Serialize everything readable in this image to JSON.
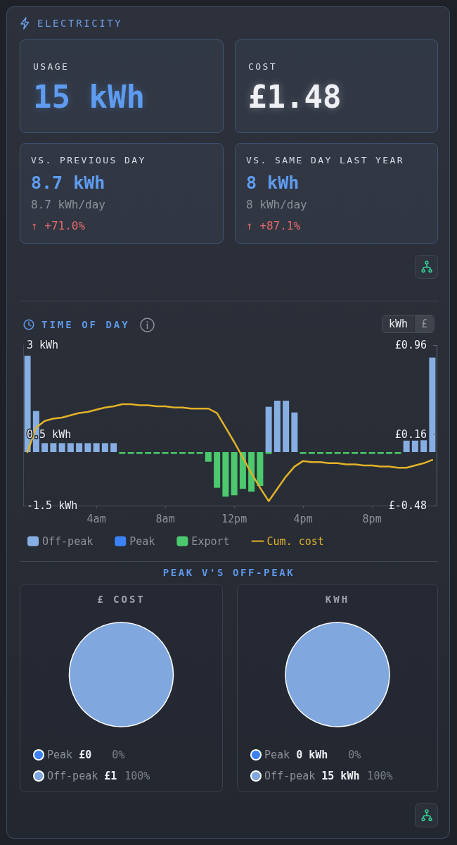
{
  "chart_data": [
    {
      "type": "other",
      "title": "ELECTRICITY"
    },
    {
      "type": "other",
      "title": "USAGE",
      "annotations": [
        "15 kWh"
      ]
    },
    {
      "type": "other",
      "title": "COST",
      "annotations": [
        "£1.48"
      ]
    },
    {
      "type": "other",
      "title": "VS. PREVIOUS DAY",
      "annotations": [
        "8.7 kWh",
        "8.7 kWh/day",
        "↑ +71.0%"
      ]
    },
    {
      "type": "other",
      "title": "VS. SAME DAY LAST YEAR",
      "annotations": [
        "8 kWh",
        "8 kWh/day",
        "↑ +87.1%"
      ]
    },
    {
      "type": "bar",
      "title": "TIME OF DAY",
      "annotations": [
        "kWh",
        "£"
      ],
      "categories": [
        null,
        null,
        null,
        null,
        null,
        null,
        null,
        null,
        "4am",
        null,
        null,
        null,
        null,
        null,
        null,
        null,
        "8am",
        null,
        null,
        null,
        null,
        null,
        null,
        null,
        "12pm",
        null,
        null,
        null,
        null,
        null,
        null,
        null,
        "4pm",
        null,
        null,
        null,
        null,
        null,
        null,
        null,
        "8pm",
        null,
        null,
        null,
        null,
        null,
        null,
        null
      ],
      "series": [
        {
          "name": "Off-peak",
          "color": "#86aee2",
          "values": [
            2.7,
            1.15,
            0.25,
            0.25,
            0.25,
            0.25,
            0.25,
            0.25,
            0.25,
            0.25,
            0.25,
            null,
            null,
            null,
            null,
            null,
            null,
            null,
            null,
            null,
            null,
            null,
            null,
            null,
            null,
            null,
            null,
            null,
            1.27,
            1.44,
            1.44,
            1.11,
            null,
            null,
            null,
            null,
            null,
            null,
            null,
            null,
            null,
            null,
            null,
            null,
            0.32,
            0.32,
            0.33,
            2.65
          ]
        },
        {
          "name": "Peak",
          "color": "#3b82f6",
          "values": [
            null,
            null,
            null,
            null,
            null,
            null,
            null,
            null,
            null,
            null,
            null,
            null,
            null,
            null,
            null,
            null,
            null,
            null,
            null,
            null,
            null,
            null,
            null,
            null,
            null,
            null,
            null,
            null,
            null,
            null,
            null,
            null,
            null,
            null,
            null,
            null,
            null,
            null,
            null,
            null,
            null,
            null,
            null,
            null,
            null,
            null,
            null,
            null
          ]
        },
        {
          "name": "Export",
          "color": "#4cc96e",
          "values": [
            null,
            null,
            null,
            null,
            null,
            null,
            null,
            null,
            null,
            null,
            null,
            -0.05,
            -0.05,
            -0.05,
            -0.05,
            -0.05,
            -0.05,
            -0.05,
            -0.05,
            -0.05,
            -0.05,
            -0.27,
            -1,
            -1.25,
            -1.21,
            -1.03,
            -1.11,
            -0.95,
            -0.05,
            null,
            null,
            null,
            -0.05,
            -0.05,
            -0.05,
            -0.05,
            -0.05,
            -0.05,
            -0.05,
            -0.05,
            -0.05,
            -0.05,
            -0.05,
            -0.05,
            null,
            null,
            null,
            null
          ]
        },
        {
          "name": "Cum. cost",
          "type": "line",
          "axis": "y2",
          "color": "#e2b228",
          "values": [
            0,
            0.22,
            0.28,
            0.3,
            0.31,
            0.33,
            0.35,
            0.36,
            0.38,
            0.4,
            0.41,
            0.43,
            0.43,
            0.42,
            0.42,
            0.41,
            0.41,
            0.4,
            0.4,
            0.39,
            0.39,
            0.39,
            0.35,
            0.22,
            0.09,
            -0.05,
            -0.19,
            -0.32,
            -0.44,
            -0.33,
            -0.22,
            -0.13,
            -0.08,
            -0.09,
            -0.09,
            -0.1,
            -0.1,
            -0.11,
            -0.11,
            -0.12,
            -0.12,
            -0.13,
            -0.13,
            -0.14,
            -0.14,
            -0.12,
            -0.1,
            -0.07
          ]
        }
      ],
      "stacked": true,
      "marker": "none",
      "legend": "bottom left",
      "ylim": [
        -1.5,
        3
      ],
      "yticks": [
        {
          "value": -1.5,
          "label": "-1.5 kWh"
        },
        {
          "value": 0.5,
          "label": "0.5 kWh"
        },
        {
          "value": 3,
          "label": "3 kWh"
        }
      ],
      "y2lim": [
        -0.48,
        0.96
      ],
      "y2ticks": [
        {
          "value": -0.48,
          "label": "£-0.48"
        },
        {
          "value": 0.16,
          "label": "£0.16"
        },
        {
          "value": 0.96,
          "label": "£0.96"
        }
      ]
    },
    {
      "type": "other",
      "title": "PEAK V'S OFF-PEAK"
    },
    {
      "type": "pie",
      "title": "£ COST",
      "categories": [
        "Peak",
        "Off-peak"
      ],
      "values": [
        0,
        1
      ],
      "colors": [
        "#3b82f6",
        "#80a8de"
      ],
      "value_labels": [
        "£0",
        "£1"
      ],
      "annotations": [
        "0%",
        "100%"
      ],
      "legend": "bottom left"
    },
    {
      "type": "pie",
      "title": "KWH",
      "categories": [
        "Peak",
        "Off-peak"
      ],
      "values": [
        0,
        15
      ],
      "colors": [
        "#3b82f6",
        "#80a8de"
      ],
      "value_labels": [
        "0 kWh",
        "15 kWh"
      ],
      "annotations": [
        "0%",
        "100%"
      ],
      "legend": "bottom left"
    }
  ]
}
